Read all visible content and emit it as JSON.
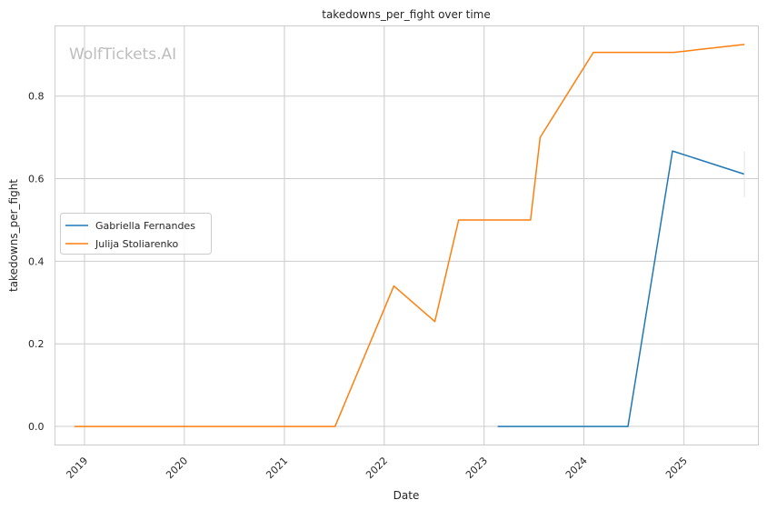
{
  "chart_data": {
    "type": "line",
    "title": "takedowns_per_fight over time",
    "xlabel": "Date",
    "ylabel": "takedowns_per_fight",
    "watermark": "WolfTickets.AI",
    "x_tick_labels": [
      "2019",
      "2020",
      "2021",
      "2022",
      "2023",
      "2024",
      "2025"
    ],
    "y_tick_labels": [
      "0.0",
      "0.2",
      "0.4",
      "0.6",
      "0.8"
    ],
    "xlim": [
      "2018-09-15",
      "2025-09-30"
    ],
    "ylim": [
      -0.045,
      0.97
    ],
    "grid": true,
    "legend_position": "center-left",
    "series": [
      {
        "name": "Gabriella Fernandes",
        "color": "#1f77b4",
        "points": [
          {
            "x": "2023-02-20",
            "y": 0.0
          },
          {
            "x": "2024-06-10",
            "y": 0.0
          },
          {
            "x": "2024-11-20",
            "y": 0.667
          },
          {
            "x": "2025-08-10",
            "y": 0.611
          }
        ],
        "error_bar": {
          "x": "2025-08-10",
          "low": 0.555,
          "high": 0.667
        }
      },
      {
        "name": "Julija Stoliarenko",
        "color": "#ff7f0e",
        "points": [
          {
            "x": "2018-11-25",
            "y": 0.0
          },
          {
            "x": "2021-07-05",
            "y": 0.0
          },
          {
            "x": "2022-02-05",
            "y": 0.34
          },
          {
            "x": "2022-07-05",
            "y": 0.254
          },
          {
            "x": "2022-09-30",
            "y": 0.5
          },
          {
            "x": "2023-06-20",
            "y": 0.5
          },
          {
            "x": "2023-07-25",
            "y": 0.7
          },
          {
            "x": "2024-02-05",
            "y": 0.906
          },
          {
            "x": "2024-11-25",
            "y": 0.906
          },
          {
            "x": "2025-08-10",
            "y": 0.925
          }
        ]
      }
    ]
  }
}
